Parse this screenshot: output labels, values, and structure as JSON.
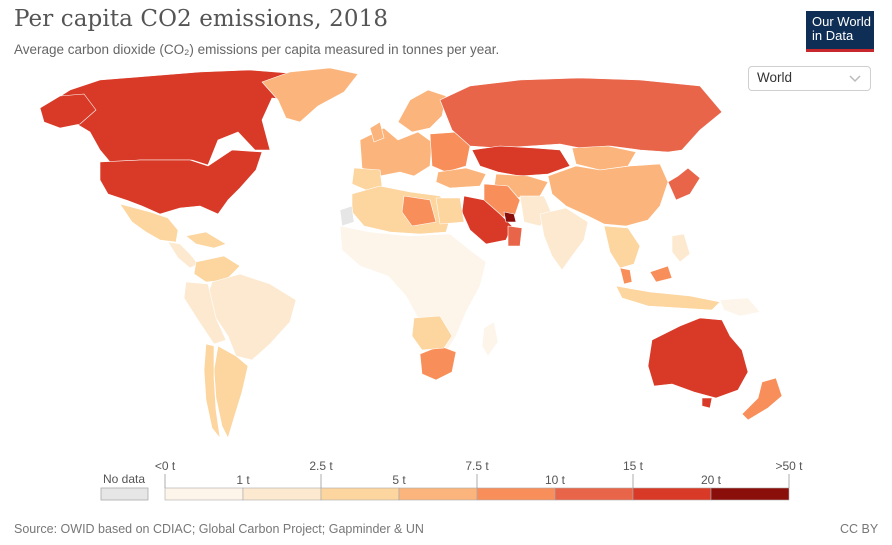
{
  "header": {
    "title": "Per capita CO2 emissions, 2018",
    "subtitle": "Average carbon dioxide (CO₂) emissions per capita measured in tonnes per year.",
    "logo_line1": "Our World",
    "logo_line2": "in Data"
  },
  "region_selector": {
    "value": "World"
  },
  "legend": {
    "no_data_label": "No data",
    "bins": [
      {
        "label": "<0 t",
        "color": "#fdf4ea"
      },
      {
        "label": "1 t",
        "color": "#fde9d0"
      },
      {
        "label": "2.5 t",
        "color": "#fcd59f"
      },
      {
        "label": "5 t",
        "color": "#fbb57c"
      },
      {
        "label": "7.5 t",
        "color": "#f88f5a"
      },
      {
        "label": "10 t",
        "color": "#e9654a"
      },
      {
        "label": "15 t",
        "color": "#d93a27"
      },
      {
        "label": "20 t",
        "color": "#8a0e0a"
      }
    ],
    "boundary_labels": [
      "<0 t",
      "2.5 t",
      "7.5 t",
      "15 t",
      ">50 t"
    ],
    "inner_labels": [
      "1 t",
      "5 t",
      "10 t",
      "20 t"
    ],
    "no_data_color": "#e6e6e6"
  },
  "footer": {
    "source": "Source: OWID based on CDIAC; Global Carbon Project; Gapminder & UN",
    "license": "CC BY"
  }
}
